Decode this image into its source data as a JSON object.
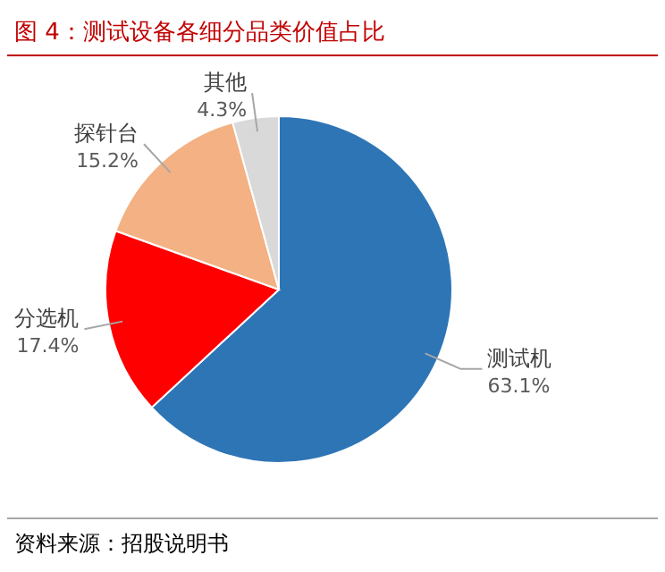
{
  "chart_data": {
    "type": "pie",
    "title": "图 4：测试设备各细分品类价值占比",
    "categories": [
      "测试机",
      "分选机",
      "探针台",
      "其他"
    ],
    "values": [
      63.1,
      17.4,
      15.2,
      4.3
    ],
    "colors": [
      "#2e75b6",
      "#ff0000",
      "#f4b183",
      "#d9d9d9"
    ],
    "value_labels": [
      "63.1%",
      "17.4%",
      "15.2%",
      "4.3%"
    ],
    "annotations": [
      "资料来源：招股说明书"
    ]
  }
}
